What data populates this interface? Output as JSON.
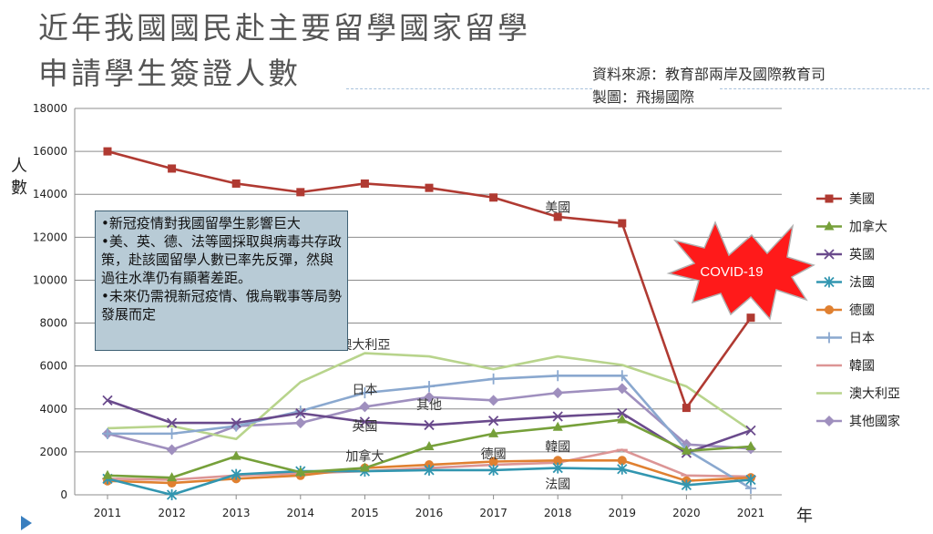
{
  "title_lines": [
    "近年我國國民赴主要留學國家留學",
    "申請學生簽證人數"
  ],
  "source_lines": [
    "資料來源：教育部兩岸及國際教育司",
    "製圖：飛揚國際"
  ],
  "note_lines": [
    "•新冠疫情對我國留學生影響巨大",
    "•美、英、德、法等國採取與病毒共存政策，赴該國留學人數已率先反彈，然與過往水準仍有顯著差距。",
    "•未來仍需視新冠疫情、俄烏戰事等局勢發展而定"
  ],
  "covid_label": "COVID-19",
  "chart_data": {
    "type": "line",
    "title": "近年我國國民赴主要留學國家留學申請學生簽證人數",
    "xlabel": "年",
    "ylabel": "人數",
    "categories": [
      "2011",
      "2012",
      "2013",
      "2014",
      "2015",
      "2016",
      "2017",
      "2018",
      "2019",
      "2020",
      "2021"
    ],
    "ylim": [
      0,
      18000
    ],
    "yticks": [
      0,
      2000,
      4000,
      6000,
      8000,
      10000,
      12000,
      14000,
      16000,
      18000
    ],
    "grid": true,
    "legend_position": "right",
    "series": [
      {
        "name": "美國",
        "color": "#b03a32",
        "marker": "square",
        "values": [
          16000,
          15200,
          14500,
          14100,
          14500,
          14300,
          13850,
          12950,
          12650,
          4050,
          8250
        ]
      },
      {
        "name": "加拿大",
        "color": "#76a03a",
        "marker": "triangle",
        "values": [
          900,
          800,
          1800,
          1050,
          1250,
          2250,
          2850,
          3150,
          3500,
          2050,
          2250
        ]
      },
      {
        "name": "英國",
        "color": "#6a4a8c",
        "marker": "x",
        "values": [
          4400,
          3350,
          3350,
          3800,
          3400,
          3250,
          3450,
          3650,
          3800,
          1950,
          3000
        ]
      },
      {
        "name": "法國",
        "color": "#3296b0",
        "marker": "star",
        "values": [
          750,
          0,
          950,
          1100,
          1100,
          1150,
          1150,
          1250,
          1200,
          450,
          700
        ]
      },
      {
        "name": "德國",
        "color": "#e08030",
        "marker": "circle",
        "values": [
          650,
          550,
          750,
          900,
          1250,
          1400,
          1550,
          1600,
          1600,
          650,
          800
        ]
      },
      {
        "name": "日本",
        "color": "#8aa8cf",
        "marker": "plus",
        "values": [
          2850,
          2850,
          3200,
          3900,
          4750,
          5050,
          5400,
          5550,
          5550,
          2100,
          300
        ]
      },
      {
        "name": "韓國",
        "color": "#dc9595",
        "marker": "dash",
        "values": [
          750,
          700,
          900,
          1000,
          1100,
          1250,
          1400,
          1500,
          2100,
          900,
          850
        ]
      },
      {
        "name": "澳大利亞",
        "color": "#b8d48c",
        "marker": "none",
        "values": [
          3100,
          3200,
          2600,
          5250,
          6600,
          6450,
          5850,
          6450,
          6050,
          5050,
          3000
        ]
      },
      {
        "name": "其他國家",
        "color": "#9f8fbe",
        "marker": "diamond",
        "values": [
          2850,
          2100,
          3200,
          3350,
          4100,
          4550,
          4400,
          4750,
          4950,
          2350,
          2150
        ]
      }
    ],
    "annotations": [
      {
        "text": "美國",
        "year": "2018",
        "y": 13400
      },
      {
        "text": "澳大利亞",
        "year": "2015",
        "y": 7000
      },
      {
        "text": "日本",
        "year": "2015",
        "y": 4900
      },
      {
        "text": "其他",
        "year": "2016",
        "y": 4200
      },
      {
        "text": "英國",
        "year": "2015",
        "y": 3200
      },
      {
        "text": "加拿大",
        "year": "2015",
        "y": 1800
      },
      {
        "text": "德國",
        "year": "2017",
        "y": 1900
      },
      {
        "text": "韓國",
        "year": "2018",
        "y": 2250
      },
      {
        "text": "法國",
        "year": "2018",
        "y": 500
      }
    ]
  }
}
